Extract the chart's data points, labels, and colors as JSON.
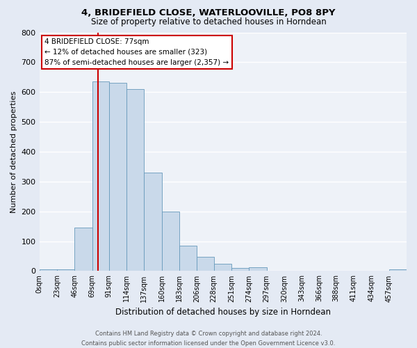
{
  "title": "4, BRIDEFIELD CLOSE, WATERLOOVILLE, PO8 8PY",
  "subtitle": "Size of property relative to detached houses in Horndean",
  "xlabel": "Distribution of detached houses by size in Horndean",
  "ylabel": "Number of detached properties",
  "bar_color": "#c9d9ea",
  "bar_edge_color": "#6699bb",
  "bg_color": "#eef2f8",
  "fig_bg_color": "#e4eaf4",
  "grid_color": "#ffffff",
  "categories": [
    "0sqm",
    "23sqm",
    "46sqm",
    "69sqm",
    "91sqm",
    "114sqm",
    "137sqm",
    "160sqm",
    "183sqm",
    "206sqm",
    "228sqm",
    "251sqm",
    "274sqm",
    "297sqm",
    "320sqm",
    "343sqm",
    "366sqm",
    "388sqm",
    "411sqm",
    "434sqm",
    "457sqm"
  ],
  "bin_edges": [
    0,
    23,
    46,
    69,
    91,
    114,
    137,
    160,
    183,
    206,
    228,
    251,
    274,
    297,
    320,
    343,
    366,
    388,
    411,
    434,
    457,
    480
  ],
  "values": [
    5,
    5,
    145,
    635,
    630,
    610,
    330,
    200,
    85,
    48,
    25,
    10,
    12,
    0,
    0,
    0,
    0,
    0,
    0,
    0,
    5
  ],
  "property_value": 77,
  "annotation_text_line1": "4 BRIDEFIELD CLOSE: 77sqm",
  "annotation_text_line2": "← 12% of detached houses are smaller (323)",
  "annotation_text_line3": "87% of semi-detached houses are larger (2,357) →",
  "annotation_box_color": "#ffffff",
  "annotation_border_color": "#cc0000",
  "red_line_color": "#cc0000",
  "ylim": [
    0,
    800
  ],
  "yticks": [
    0,
    100,
    200,
    300,
    400,
    500,
    600,
    700,
    800
  ],
  "footer_line1": "Contains HM Land Registry data © Crown copyright and database right 2024.",
  "footer_line2": "Contains public sector information licensed under the Open Government Licence v3.0."
}
